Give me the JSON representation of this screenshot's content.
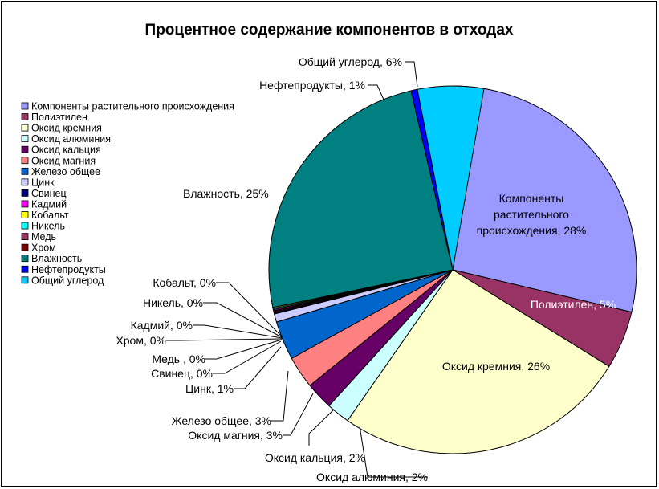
{
  "chart_data": {
    "type": "pie",
    "title": "Процентное содержание компонентов в отходах",
    "slices": [
      {
        "name": "Компоненты растительного происхождения",
        "value": 28,
        "label_lines": [
          "Компоненты",
          "растительного",
          "происхождения, 28%"
        ],
        "color": "#9999ff"
      },
      {
        "name": "Полиэтилен",
        "value": 5,
        "label_lines": [
          "Полиэтилен, 5%"
        ],
        "color": "#993366"
      },
      {
        "name": "Оксид кремния",
        "value": 26,
        "label_lines": [
          "Оксид кремния, 26%"
        ],
        "color": "#ffffcc"
      },
      {
        "name": "Оксид алюминия",
        "value": 2,
        "label_lines": [
          "Оксид алюминия, 2%"
        ],
        "color": "#ccffff"
      },
      {
        "name": "Оксид кальция",
        "value": 2,
        "label_lines": [
          "Оксид кальция, 2%"
        ],
        "color": "#660066"
      },
      {
        "name": "Оксид магния",
        "value": 3,
        "label_lines": [
          "Оксид магния, 3%"
        ],
        "color": "#ff8080"
      },
      {
        "name": "Железо общее",
        "value": 3,
        "label_lines": [
          "Железо общее, 3%"
        ],
        "color": "#0066cc"
      },
      {
        "name": "Цинк",
        "value": 1,
        "label_lines": [
          "Цинк, 1%"
        ],
        "color": "#ccccff"
      },
      {
        "name": "Свинец",
        "value": 0,
        "label_lines": [
          "Свинец, 0%"
        ],
        "color": "#000080"
      },
      {
        "name": "Медь",
        "value": 0,
        "label_lines": [
          "Медь , 0%"
        ],
        "color": "#993366"
      },
      {
        "name": "Хром",
        "value": 0,
        "label_lines": [
          "Хром, 0%"
        ],
        "color": "#800000"
      },
      {
        "name": "Кадмий",
        "value": 0,
        "label_lines": [
          "Кадмий, 0%"
        ],
        "color": "#ff00ff"
      },
      {
        "name": "Никель",
        "value": 0,
        "label_lines": [
          "Никель, 0%"
        ],
        "color": "#00ffff"
      },
      {
        "name": "Кобальт",
        "value": 0,
        "label_lines": [
          "Кобальт, 0%"
        ],
        "color": "#ffff00"
      },
      {
        "name": "Влажность",
        "value": 25,
        "label_lines": [
          "Влажность, 25%"
        ],
        "color": "#008080"
      },
      {
        "name": "Нефтепродукты",
        "value": 1,
        "label_lines": [
          "Нефтепродукты, 1%"
        ],
        "color": "#0000ff"
      },
      {
        "name": "Общий углерод",
        "value": 6,
        "label_lines": [
          "Общий углерод, 6%"
        ],
        "color": "#00ccff"
      }
    ],
    "legend_position": "left",
    "legend": [
      {
        "label": "Компоненты растительного происхождения",
        "color": "#9999ff"
      },
      {
        "label": "Полиэтилен",
        "color": "#993366"
      },
      {
        "label": "Оксид кремния",
        "color": "#ffffcc"
      },
      {
        "label": "Оксид алюминия",
        "color": "#ccffff"
      },
      {
        "label": "Оксид кальция",
        "color": "#660066"
      },
      {
        "label": "Оксид магния",
        "color": "#ff8080"
      },
      {
        "label": "Железо общее",
        "color": "#0066cc"
      },
      {
        "label": "Цинк",
        "color": "#ccccff"
      },
      {
        "label": "Свинец",
        "color": "#000080"
      },
      {
        "label": "Кадмий",
        "color": "#ff00ff"
      },
      {
        "label": "Кобальт",
        "color": "#ffff00"
      },
      {
        "label": "Никель",
        "color": "#00ffff"
      },
      {
        "label": "Медь",
        "color": "#993366"
      },
      {
        "label": "Хром",
        "color": "#800000"
      },
      {
        "label": "Влажность",
        "color": "#008080"
      },
      {
        "label": "Нефтепродукты",
        "color": "#0000ff"
      },
      {
        "label": "Общий углерод",
        "color": "#00ccff"
      }
    ]
  }
}
